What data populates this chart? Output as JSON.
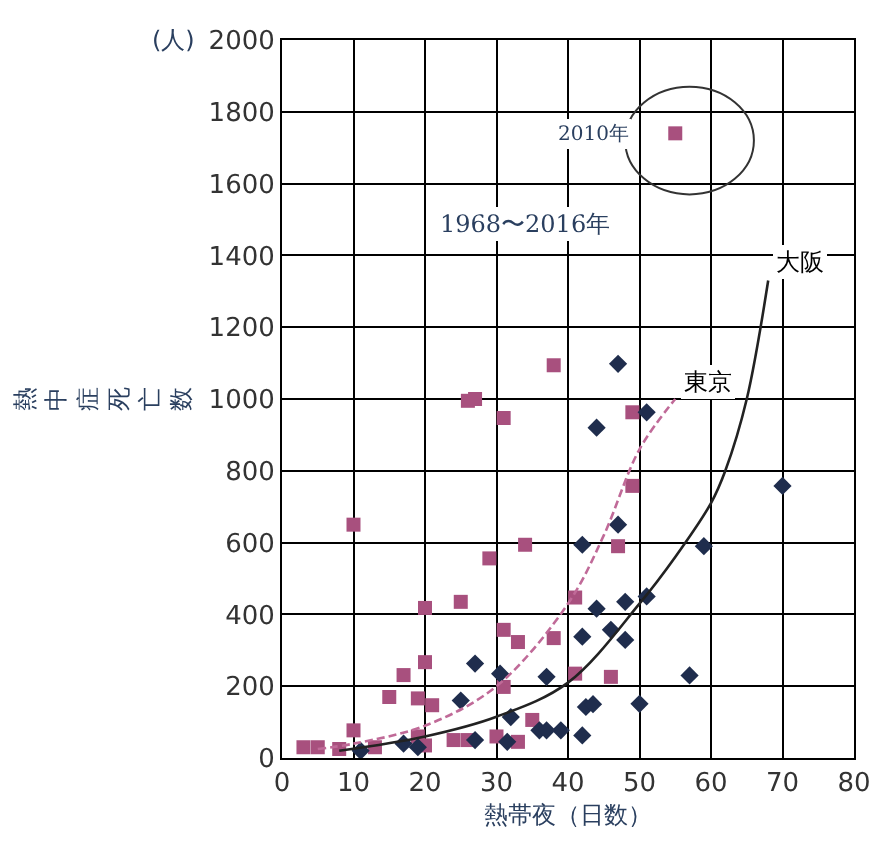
{
  "chart_data": {
    "type": "scatter",
    "xlabel": "熱帯夜（日数）",
    "ylabel": "熱中症死亡数",
    "annotations": [
      "(人)",
      "1968〜2016年",
      {
        "text": "2010年",
        "x": 55,
        "y": 1740
      }
    ],
    "xlim": [
      0,
      80
    ],
    "xticks": [
      0,
      10,
      20,
      30,
      40,
      50,
      60,
      70,
      80
    ],
    "ylim": [
      0,
      2000
    ],
    "yticks": [
      0,
      200,
      400,
      600,
      800,
      1000,
      1200,
      1400,
      1600,
      1800,
      2000
    ],
    "grid": true,
    "legend": false,
    "series": [
      {
        "marker": "square",
        "color": "#a8507e",
        "x": [
          55,
          26,
          27,
          31,
          38,
          49,
          49,
          10,
          34,
          29,
          20,
          25,
          31,
          33,
          38,
          20,
          17,
          15,
          19,
          21,
          31,
          47,
          41,
          41,
          46,
          10,
          35,
          3,
          5,
          8,
          13,
          19,
          20,
          24,
          26,
          30,
          33
        ],
        "values": [
          1740,
          995,
          1000,
          947,
          1094,
          963,
          758,
          650,
          594,
          556,
          418,
          435,
          357,
          323,
          334,
          267,
          231,
          170,
          166,
          147,
          198,
          590,
          447,
          235,
          226,
          77,
          106,
          30,
          30,
          25,
          30,
          60,
          35,
          50,
          50,
          60,
          45
        ]
      },
      {
        "marker": "diamond",
        "color": "#1f2d4d",
        "x": [
          51,
          44,
          47,
          70,
          47,
          42,
          59,
          48,
          51,
          44,
          42,
          46,
          48,
          57,
          50,
          42.5,
          43.5,
          39,
          42,
          27,
          30.5,
          37,
          25,
          32,
          36,
          37,
          31.5,
          27,
          19,
          17,
          11
        ],
        "values": [
          963,
          920,
          1098,
          758,
          650,
          594,
          590,
          435,
          450,
          416,
          338,
          357,
          329,
          230,
          151,
          142,
          150,
          77,
          63,
          263,
          235,
          226,
          160,
          114,
          77,
          77,
          45,
          50,
          30,
          40,
          20
        ]
      },
      {
        "type": "line",
        "name": "東京",
        "line_style": "dashed",
        "color": "#c06a98",
        "x": [
          5,
          10,
          20,
          30,
          40,
          45,
          50,
          55
        ],
        "values": [
          25,
          40,
          90,
          200,
          430,
          620,
          860,
          1000
        ]
      },
      {
        "type": "line",
        "name": "大阪",
        "line_style": "solid",
        "color": "#222222",
        "x": [
          8,
          20,
          30,
          40,
          50,
          55,
          60,
          62,
          65,
          68
        ],
        "values": [
          20,
          60,
          115,
          210,
          430,
          560,
          710,
          800,
          1000,
          1330
        ]
      }
    ]
  }
}
